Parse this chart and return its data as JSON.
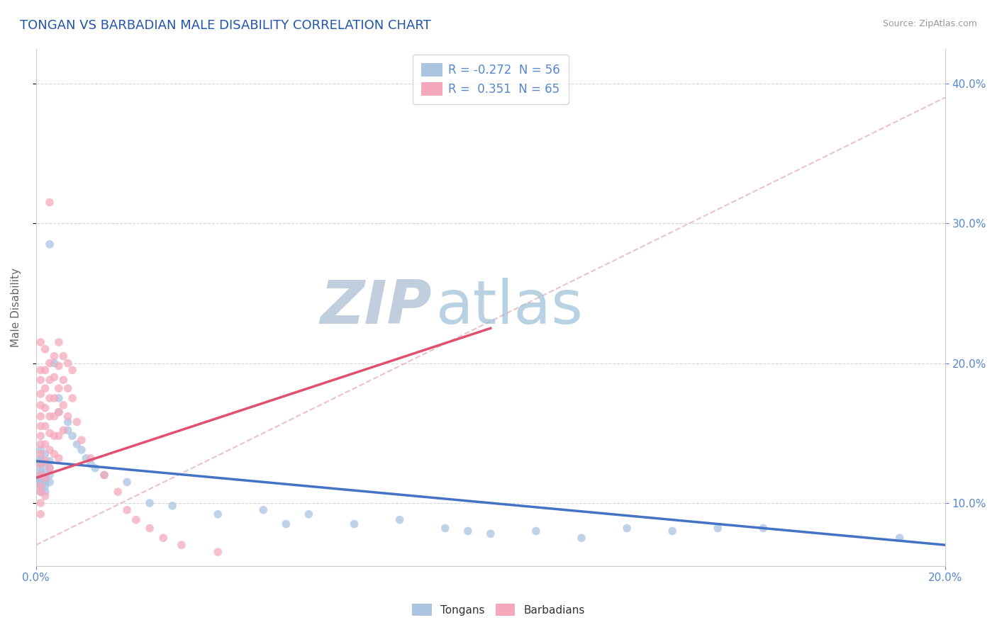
{
  "title": "TONGAN VS BARBADIAN MALE DISABILITY CORRELATION CHART",
  "source": "Source: ZipAtlas.com",
  "xmin": 0.0,
  "xmax": 0.2,
  "ymin": 0.055,
  "ymax": 0.425,
  "R_tongan": -0.272,
  "N_tongan": 56,
  "R_barbadian": 0.351,
  "N_barbadian": 65,
  "color_tongan": "#aac4e2",
  "color_barbadian": "#f5a8bc",
  "color_tongan_line": "#4472c4",
  "color_barbadian_line": "#e05070",
  "color_ref_line": "#e8b0b8",
  "watermark_zip_color": "#c8d4e0",
  "watermark_atlas_color": "#9bbfd8",
  "title_color": "#2255aa",
  "axis_tick_color": "#5588cc",
  "legend_box_color": "#f5f5f5",
  "ylabel": "Male Disability",
  "yticks": [
    0.1,
    0.2,
    0.3,
    0.4
  ],
  "xticks": [
    0.0,
    0.2
  ],
  "tongan_scatter": [
    [
      0.001,
      0.132
    ],
    [
      0.001,
      0.128
    ],
    [
      0.001,
      0.13
    ],
    [
      0.001,
      0.125
    ],
    [
      0.001,
      0.122
    ],
    [
      0.001,
      0.118
    ],
    [
      0.001,
      0.115
    ],
    [
      0.001,
      0.112
    ],
    [
      0.001,
      0.108
    ],
    [
      0.001,
      0.138
    ],
    [
      0.001,
      0.12
    ],
    [
      0.001,
      0.116
    ],
    [
      0.001,
      0.113
    ],
    [
      0.002,
      0.135
    ],
    [
      0.002,
      0.128
    ],
    [
      0.002,
      0.122
    ],
    [
      0.002,
      0.118
    ],
    [
      0.002,
      0.115
    ],
    [
      0.002,
      0.112
    ],
    [
      0.002,
      0.108
    ],
    [
      0.003,
      0.13
    ],
    [
      0.003,
      0.125
    ],
    [
      0.003,
      0.12
    ],
    [
      0.003,
      0.115
    ],
    [
      0.003,
      0.285
    ],
    [
      0.004,
      0.2
    ],
    [
      0.005,
      0.175
    ],
    [
      0.005,
      0.165
    ],
    [
      0.007,
      0.158
    ],
    [
      0.007,
      0.152
    ],
    [
      0.008,
      0.148
    ],
    [
      0.009,
      0.142
    ],
    [
      0.01,
      0.138
    ],
    [
      0.011,
      0.132
    ],
    [
      0.012,
      0.128
    ],
    [
      0.013,
      0.125
    ],
    [
      0.015,
      0.12
    ],
    [
      0.02,
      0.115
    ],
    [
      0.025,
      0.1
    ],
    [
      0.03,
      0.098
    ],
    [
      0.04,
      0.092
    ],
    [
      0.05,
      0.095
    ],
    [
      0.055,
      0.085
    ],
    [
      0.06,
      0.092
    ],
    [
      0.07,
      0.085
    ],
    [
      0.08,
      0.088
    ],
    [
      0.09,
      0.082
    ],
    [
      0.095,
      0.08
    ],
    [
      0.1,
      0.078
    ],
    [
      0.11,
      0.08
    ],
    [
      0.12,
      0.075
    ],
    [
      0.13,
      0.082
    ],
    [
      0.14,
      0.08
    ],
    [
      0.15,
      0.082
    ],
    [
      0.16,
      0.082
    ],
    [
      0.19,
      0.075
    ]
  ],
  "barbadian_scatter": [
    [
      0.001,
      0.215
    ],
    [
      0.001,
      0.195
    ],
    [
      0.001,
      0.188
    ],
    [
      0.001,
      0.178
    ],
    [
      0.001,
      0.17
    ],
    [
      0.001,
      0.162
    ],
    [
      0.001,
      0.155
    ],
    [
      0.001,
      0.148
    ],
    [
      0.001,
      0.142
    ],
    [
      0.001,
      0.135
    ],
    [
      0.001,
      0.128
    ],
    [
      0.001,
      0.12
    ],
    [
      0.001,
      0.112
    ],
    [
      0.001,
      0.108
    ],
    [
      0.001,
      0.1
    ],
    [
      0.001,
      0.092
    ],
    [
      0.002,
      0.21
    ],
    [
      0.002,
      0.195
    ],
    [
      0.002,
      0.182
    ],
    [
      0.002,
      0.168
    ],
    [
      0.002,
      0.155
    ],
    [
      0.002,
      0.142
    ],
    [
      0.002,
      0.13
    ],
    [
      0.002,
      0.118
    ],
    [
      0.002,
      0.105
    ],
    [
      0.003,
      0.2
    ],
    [
      0.003,
      0.188
    ],
    [
      0.003,
      0.175
    ],
    [
      0.003,
      0.162
    ],
    [
      0.003,
      0.15
    ],
    [
      0.003,
      0.138
    ],
    [
      0.003,
      0.125
    ],
    [
      0.003,
      0.315
    ],
    [
      0.004,
      0.205
    ],
    [
      0.004,
      0.19
    ],
    [
      0.004,
      0.175
    ],
    [
      0.004,
      0.162
    ],
    [
      0.004,
      0.148
    ],
    [
      0.004,
      0.135
    ],
    [
      0.005,
      0.215
    ],
    [
      0.005,
      0.198
    ],
    [
      0.005,
      0.182
    ],
    [
      0.005,
      0.165
    ],
    [
      0.005,
      0.148
    ],
    [
      0.005,
      0.132
    ],
    [
      0.006,
      0.205
    ],
    [
      0.006,
      0.188
    ],
    [
      0.006,
      0.17
    ],
    [
      0.006,
      0.152
    ],
    [
      0.007,
      0.2
    ],
    [
      0.007,
      0.182
    ],
    [
      0.007,
      0.162
    ],
    [
      0.008,
      0.195
    ],
    [
      0.008,
      0.175
    ],
    [
      0.009,
      0.158
    ],
    [
      0.01,
      0.145
    ],
    [
      0.012,
      0.132
    ],
    [
      0.015,
      0.12
    ],
    [
      0.018,
      0.108
    ],
    [
      0.02,
      0.095
    ],
    [
      0.022,
      0.088
    ],
    [
      0.025,
      0.082
    ],
    [
      0.028,
      0.075
    ],
    [
      0.032,
      0.07
    ],
    [
      0.04,
      0.065
    ]
  ]
}
